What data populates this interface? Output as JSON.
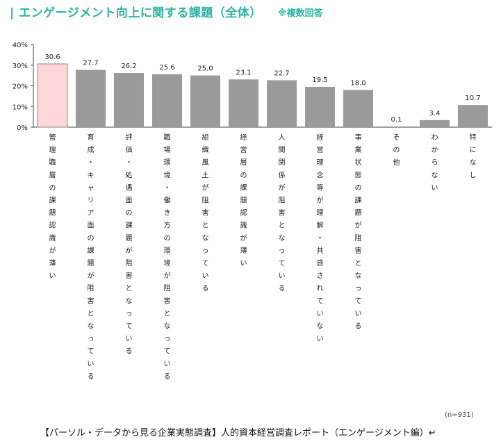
{
  "header": {
    "title": "| エンゲージメント向上に関する課題（全体）",
    "subtitle": "※複数回答"
  },
  "chart_data": {
    "type": "bar",
    "title": "エンゲージメント向上に関する課題（全体）",
    "xlabel": "",
    "ylabel": "",
    "ylim": [
      0,
      40
    ],
    "yticks": [
      "0%",
      "10%",
      "20%",
      "30%",
      "40%"
    ],
    "grid": false,
    "categories": [
      "管理職層の課題認識が薄い",
      "育成・キャリア面の課題が阻害となっている",
      "評価・処遇面の課題が阻害となっている",
      "職場環境・働き方の環境が阻害となっている",
      "組織風土が阻害となっている",
      "経営層の課題認識が薄い",
      "人間関係が阻害となっている",
      "経営理念等が理解・共感されていない",
      "事業状態の課題が阻害となっている",
      "その他",
      "わからない",
      "特になし"
    ],
    "values": [
      30.6,
      27.7,
      26.2,
      25.6,
      25.0,
      23.1,
      22.7,
      19.5,
      18.0,
      0.1,
      3.4,
      10.7
    ],
    "highlight_index": 0,
    "colors": {
      "highlight_fill": "#ffd6d9",
      "highlight_stroke": "#8a8a8a",
      "bar": "#9a9a9a",
      "axis": "#444444"
    }
  },
  "note": "(n=931)",
  "footer": "【パーソル・データから見る企業実態調査】人的資本経営調査レポート（エンゲージメント編）↵"
}
